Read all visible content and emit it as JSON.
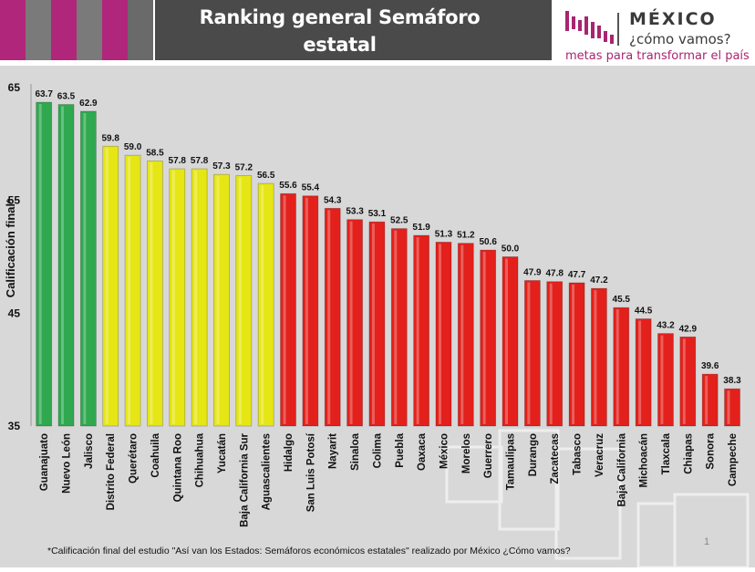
{
  "header": {
    "title_line1": "Ranking general Semáforo",
    "title_line2": "estatal",
    "stripe_colors": [
      "#b0267a",
      "#7a7a7a",
      "#b0267a",
      "#7a7a7a",
      "#b0267a",
      "#6a6a6a"
    ]
  },
  "logo": {
    "word": "MÉXICO",
    "subtitle": "¿cómo vamos?",
    "tagline": "metas para transformar el país",
    "color": "#a8256f"
  },
  "footnote": "*Calificación final del estudio \"Así van los Estados: Semáforos económicos estatales\" realizado por México ¿Cómo vamos?",
  "page_number": "1",
  "chart_data": {
    "type": "bar",
    "title": "Ranking general Semáforo estatal",
    "ylabel": "Calificación final*",
    "xlabel": "",
    "ylim": [
      35,
      65
    ],
    "yticks": [
      35,
      45,
      55,
      65
    ],
    "grid": false,
    "categories": [
      "Guanajuato",
      "Nuevo León",
      "Jalisco",
      "Distrito Federal",
      "Querétaro",
      "Coahuila",
      "Quintana Roo",
      "Chihuahua",
      "Yucatán",
      "Baja California Sur",
      "Aguascalientes",
      "Hidalgo",
      "San Luis Potosí",
      "Nayarit",
      "Sinaloa",
      "Colima",
      "Puebla",
      "Oaxaca",
      "México",
      "Morelos",
      "Guerrero",
      "Tamaulipas",
      "Durango",
      "Zacatecas",
      "Tabasco",
      "Veracruz",
      "Baja California",
      "Michoacán",
      "Tlaxcala",
      "Chiapas",
      "Sonora",
      "Campeche"
    ],
    "values": [
      63.7,
      63.5,
      62.9,
      59.8,
      59.0,
      58.5,
      57.8,
      57.8,
      57.3,
      57.2,
      56.5,
      55.6,
      55.4,
      54.3,
      53.3,
      53.1,
      52.5,
      51.9,
      51.3,
      51.2,
      50.6,
      50.0,
      47.9,
      47.8,
      47.7,
      47.2,
      45.5,
      44.5,
      43.2,
      42.9,
      39.6,
      38.3
    ],
    "value_labels": [
      "63.7",
      "63.5",
      "62.9",
      "59.8",
      "59.0",
      "58.5",
      "57.8",
      "57.8",
      "57.3",
      "57.2",
      "56.5",
      "55.6",
      "55.4",
      "54.3",
      "53.3",
      "53.1",
      "52.5",
      "51.9",
      "51.3",
      "51.2",
      "50.6",
      "50.0",
      "47.9",
      "47.8",
      "47.7",
      "47.2",
      "45.5",
      "44.5",
      "43.2",
      "42.9",
      "39.6",
      "38.3"
    ],
    "bar_colors": [
      "#2fa84f",
      "#2fa84f",
      "#2fa84f",
      "#e6e615",
      "#e6e615",
      "#e6e615",
      "#e6e615",
      "#e6e615",
      "#e6e615",
      "#e6e615",
      "#e6e615",
      "#e3201b",
      "#e3201b",
      "#e3201b",
      "#e3201b",
      "#e3201b",
      "#e3201b",
      "#e3201b",
      "#e3201b",
      "#e3201b",
      "#e3201b",
      "#e3201b",
      "#e3201b",
      "#e3201b",
      "#e3201b",
      "#e3201b",
      "#e3201b",
      "#e3201b",
      "#e3201b",
      "#e3201b",
      "#e3201b",
      "#e3201b"
    ]
  }
}
